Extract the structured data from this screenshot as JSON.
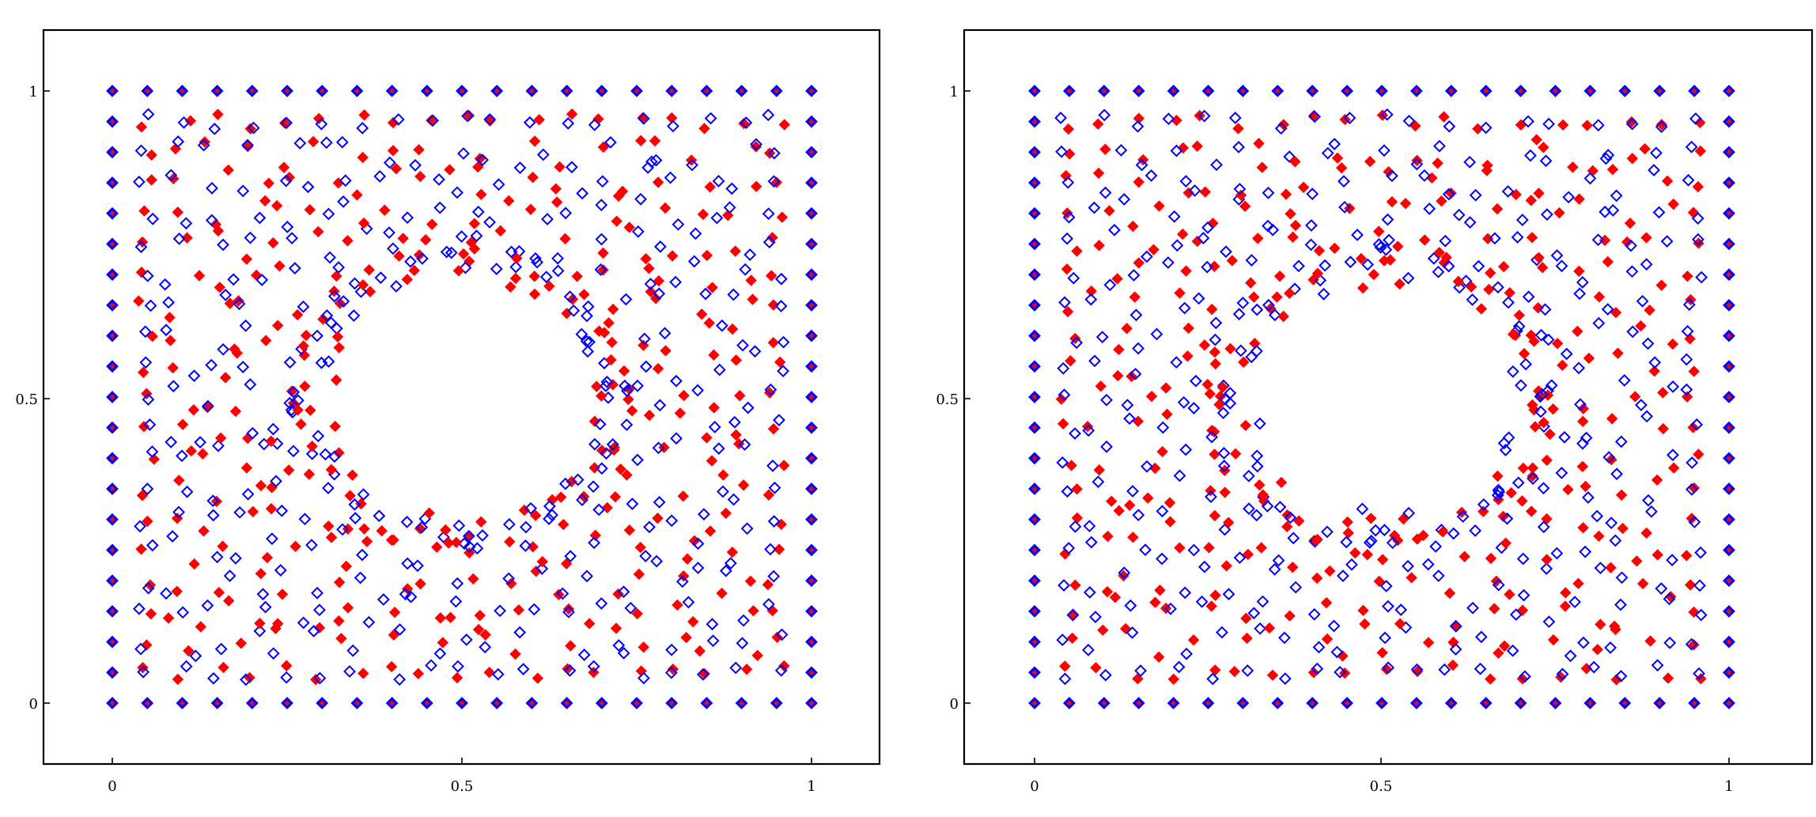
{
  "chart_data": [
    {
      "type": "scatter",
      "xlim": [
        0,
        1
      ],
      "ylim": [
        0,
        1
      ],
      "x_ticks": [
        "0",
        "0.5",
        "1"
      ],
      "y_ticks": [
        "0",
        "0.5",
        "1"
      ],
      "grid": false,
      "series": [
        {
          "marker": "filled-diamond",
          "color": "#ff0000"
        },
        {
          "marker": "open-diamond",
          "color": "#0000ff"
        }
      ],
      "description_points": "Square grid of nodes on [0,1]x[0,1] with spacing 0.05, perturbed around a circular hole centred near (0.5,0.5) with radius ~0.2; boundary nodes fixed."
    },
    {
      "type": "scatter",
      "xlim": [
        0,
        1
      ],
      "ylim": [
        0,
        1
      ],
      "x_ticks": [
        "0",
        "0.5",
        "1"
      ],
      "y_ticks": [
        "0",
        "0.5",
        "1"
      ],
      "grid": false,
      "series": [
        {
          "marker": "filled-diamond",
          "color": "#ff0000"
        },
        {
          "marker": "open-diamond",
          "color": "#0000ff"
        }
      ]
    }
  ],
  "colors": {
    "red": "#ff0000",
    "blue": "#0000ff",
    "frame": "#000000"
  }
}
